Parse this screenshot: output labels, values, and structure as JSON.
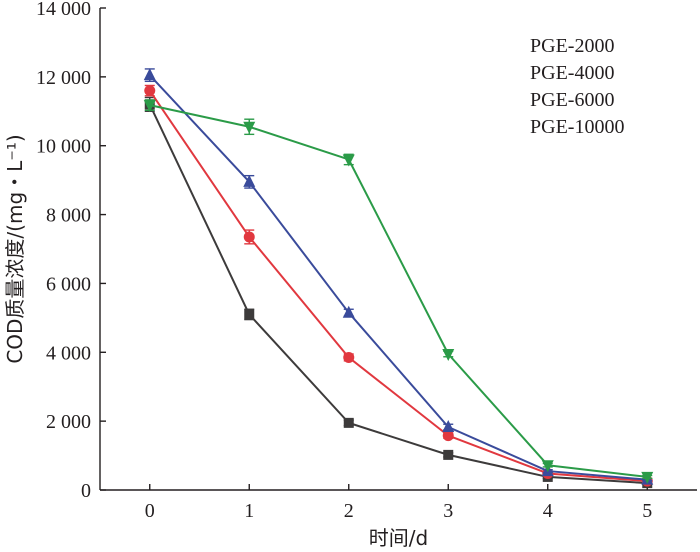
{
  "chart_data": {
    "type": "line",
    "title": "",
    "xlabel": "时间/d",
    "ylabel": "COD质量浓度/(mg・L⁻¹)",
    "x": [
      0,
      1,
      2,
      3,
      4,
      5
    ],
    "xlim": [
      -0.5,
      5.5
    ],
    "ylim": [
      0,
      14000
    ],
    "x_ticks": [
      0,
      1,
      2,
      3,
      4,
      5
    ],
    "x_tick_labels": [
      "0",
      "1",
      "2",
      "3",
      "4",
      "5"
    ],
    "y_ticks": [
      0,
      2000,
      4000,
      6000,
      8000,
      10000,
      12000,
      14000
    ],
    "y_tick_labels": [
      "0",
      "2 000",
      "4 000",
      "6 000",
      "8 000",
      "10 000",
      "12 000",
      "14 000"
    ],
    "legend_position": "top-right",
    "series": [
      {
        "name": "PGE-2000",
        "color": "#3d3b3b",
        "marker": "square",
        "values": [
          11200,
          5100,
          1950,
          1020,
          380,
          200
        ],
        "errors": [
          200,
          150,
          80,
          60,
          40,
          30
        ]
      },
      {
        "name": "PGE-4000",
        "color": "#e1383f",
        "marker": "circle",
        "values": [
          11600,
          7350,
          3850,
          1580,
          480,
          260
        ],
        "errors": [
          150,
          200,
          100,
          80,
          40,
          30
        ]
      },
      {
        "name": "PGE-6000",
        "color": "#3a4b9b",
        "marker": "triangle-up",
        "values": [
          12050,
          8950,
          5150,
          1830,
          550,
          300
        ],
        "errors": [
          180,
          180,
          100,
          80,
          40,
          30
        ]
      },
      {
        "name": "PGE-10000",
        "color": "#2b9b48",
        "marker": "triangle-down",
        "values": [
          11180,
          10550,
          9600,
          3950,
          720,
          380
        ],
        "errors": [
          150,
          220,
          150,
          80,
          50,
          40
        ]
      }
    ]
  }
}
